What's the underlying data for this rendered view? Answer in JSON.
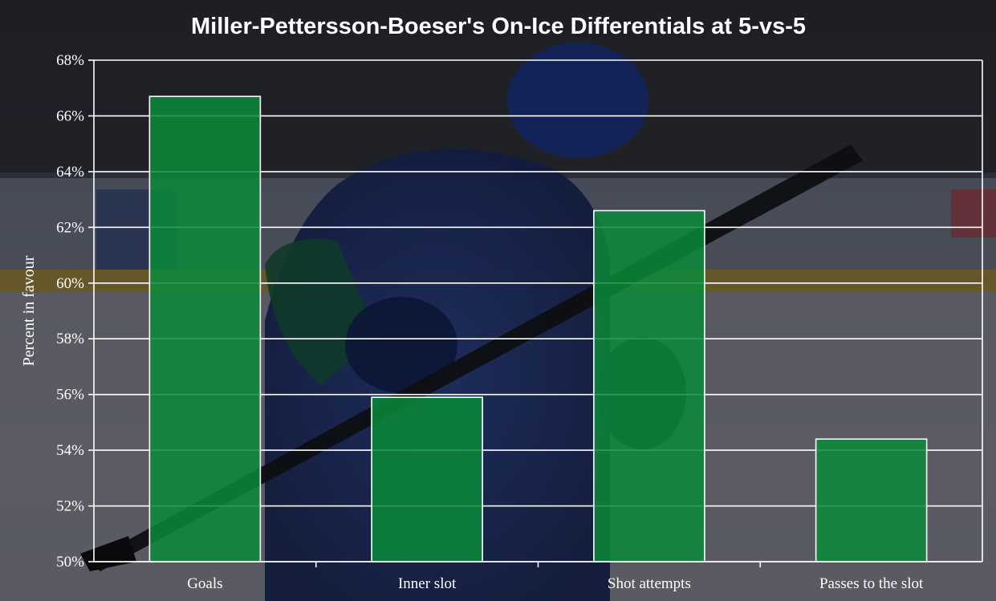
{
  "chart_data": {
    "type": "bar",
    "title": "Miller-Pettersson-Boeser's On-Ice Differentials at 5-vs-5",
    "xlabel": "",
    "ylabel": "Percent in favour",
    "categories": [
      "Goals",
      "Inner slot",
      "Shot attempts",
      "Passes to the slot"
    ],
    "values": [
      66.7,
      55.9,
      62.6,
      54.4
    ],
    "ylim": [
      50,
      68
    ],
    "yticks": [
      50,
      52,
      54,
      56,
      58,
      60,
      62,
      64,
      66,
      68
    ],
    "ytick_suffix": "%",
    "grid": true,
    "legend": "none"
  },
  "colors": {
    "bar_fill": "#0a8a3a",
    "bar_stroke": "#ffffff",
    "grid": "#ffffff",
    "text": "#ffffff"
  },
  "background": {
    "description_icon": "hockey-player-photo"
  }
}
